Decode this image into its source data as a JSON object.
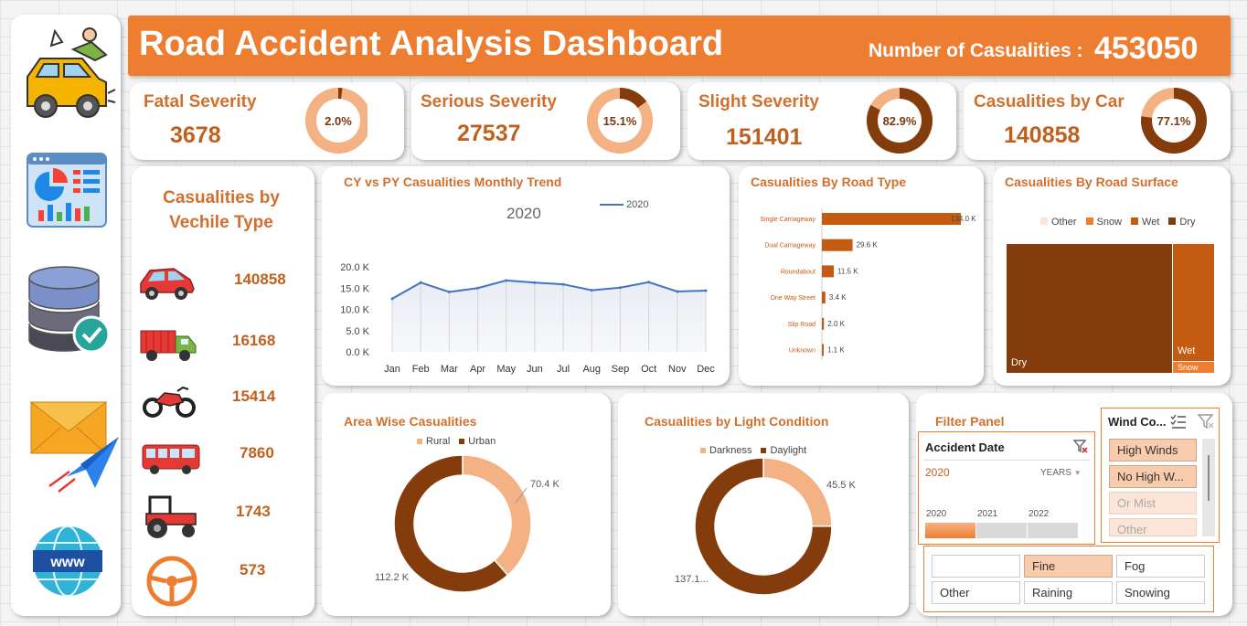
{
  "header": {
    "title": "Road Accident Analysis Dashboard",
    "casualties_label": "Number of Casualities :",
    "casualties_value": "453050"
  },
  "colors": {
    "accent": "#ed7d31",
    "dark": "#843c0c",
    "mid": "#c55a11",
    "light": "#f4b183",
    "line": "#4472c4"
  },
  "sidebar": {
    "icons": [
      "car-crash-icon",
      "dashboard-icon",
      "database-icon",
      "email-send-icon",
      "www-globe-icon"
    ]
  },
  "kpis": [
    {
      "label": "Fatal Severity",
      "value": "3678",
      "pct_label": "2.0%",
      "pct": 2.0
    },
    {
      "label": "Serious Severity",
      "value": "27537",
      "pct_label": "15.1%",
      "pct": 15.1
    },
    {
      "label": "Slight Severity",
      "value": "151401",
      "pct_label": "82.9%",
      "pct": 82.9
    },
    {
      "label": "Casualities by Car",
      "value": "140858",
      "pct_label": "77.1%",
      "pct": 77.1
    }
  ],
  "vehicle": {
    "title_line1": "Casualities by",
    "title_line2": "Vechile Type",
    "items": [
      {
        "icon": "car-icon",
        "value": "140858"
      },
      {
        "icon": "truck-icon",
        "value": "16168"
      },
      {
        "icon": "motorcycle-icon",
        "value": "15414"
      },
      {
        "icon": "bus-icon",
        "value": "7860"
      },
      {
        "icon": "tractor-icon",
        "value": "1743"
      },
      {
        "icon": "steering-wheel-icon",
        "value": "573"
      }
    ]
  },
  "trend": {
    "title": "CY vs PY Casualities Monthly Trend",
    "subtitle": "2020",
    "legend": "2020",
    "y_ticks": [
      "20.0 K",
      "15.0 K",
      "10.0 K",
      "5.0 K",
      "0.0 K"
    ],
    "months": [
      "Jan",
      "Feb",
      "Mar",
      "Apr",
      "May",
      "Jun",
      "Jul",
      "Aug",
      "Sep",
      "Oct",
      "Nov",
      "Dec"
    ]
  },
  "road_type": {
    "title": "Casualities By Road Type",
    "items": [
      {
        "label": "Single Carriageway",
        "value_label": "134.0 K"
      },
      {
        "label": "Dual Carriageway",
        "value_label": "29.6 K"
      },
      {
        "label": "Roundabout",
        "value_label": "11.5 K"
      },
      {
        "label": "One Way Street",
        "value_label": "3.4 K"
      },
      {
        "label": "Slip Road",
        "value_label": "2.0 K"
      },
      {
        "label": "Unknown",
        "value_label": "1.1 K"
      }
    ]
  },
  "surface": {
    "title": "Casualities By Road Surface",
    "legend": [
      "Other",
      "Snow",
      "Wet",
      "Dry"
    ],
    "labels": {
      "dry": "Dry",
      "wet": "Wet",
      "snow": "Snow"
    }
  },
  "area": {
    "title": "Area Wise Casualities",
    "legend": [
      "Rural",
      "Urban"
    ],
    "rural_label": "70.4 K",
    "urban_label": "112.2 K"
  },
  "light": {
    "title": "Casualities by Light Condition",
    "legend": [
      "Darkness",
      "Daylight"
    ],
    "dark_label": "45.5 K",
    "day_label": "137.1..."
  },
  "filter": {
    "title": "Filter Panel",
    "date": {
      "title": "Accident Date",
      "selected": "2020",
      "level": "YEARS",
      "years": [
        "2020",
        "2021",
        "2022"
      ]
    },
    "wind": {
      "title": "Wind Co...",
      "options": [
        "High Winds",
        "No High W...",
        "Or Mist",
        "Other"
      ]
    },
    "weather": {
      "options": [
        "",
        "Fine",
        "Fog",
        "Other",
        "Raining",
        "Snowing"
      ]
    }
  },
  "chart_data": [
    {
      "type": "line",
      "title": "CY vs PY Casualities Monthly Trend",
      "subtitle": "2020",
      "categories": [
        "Jan",
        "Feb",
        "Mar",
        "Apr",
        "May",
        "Jun",
        "Jul",
        "Aug",
        "Sep",
        "Oct",
        "Nov",
        "Dec"
      ],
      "series": [
        {
          "name": "2020",
          "values": [
            12500,
            16300,
            14100,
            15000,
            16800,
            16300,
            15900,
            14500,
            15100,
            16400,
            14200,
            14400
          ]
        }
      ],
      "ylim": [
        0,
        20000
      ],
      "grid": false,
      "legend": "top-right"
    },
    {
      "type": "bar",
      "title": "Casualities By Road Type",
      "categories": [
        "Single Carriageway",
        "Dual Carriageway",
        "Roundabout",
        "One Way Street",
        "Slip Road",
        "Unknown"
      ],
      "values": [
        134000,
        29600,
        11500,
        3400,
        2000,
        1100
      ]
    },
    {
      "type": "heatmap",
      "title": "Casualities By Road Surface",
      "categories": [
        "Dry",
        "Wet",
        "Snow",
        "Other"
      ],
      "values": [
        135000,
        46000,
        2000,
        500
      ]
    },
    {
      "type": "pie",
      "title": "Area Wise Casualities",
      "categories": [
        "Rural",
        "Urban"
      ],
      "values": [
        70400,
        112200
      ],
      "legend": "top"
    },
    {
      "type": "pie",
      "title": "Casualities by Light Condition",
      "categories": [
        "Darkness",
        "Daylight"
      ],
      "values": [
        45500,
        137100
      ],
      "legend": "top"
    }
  ]
}
